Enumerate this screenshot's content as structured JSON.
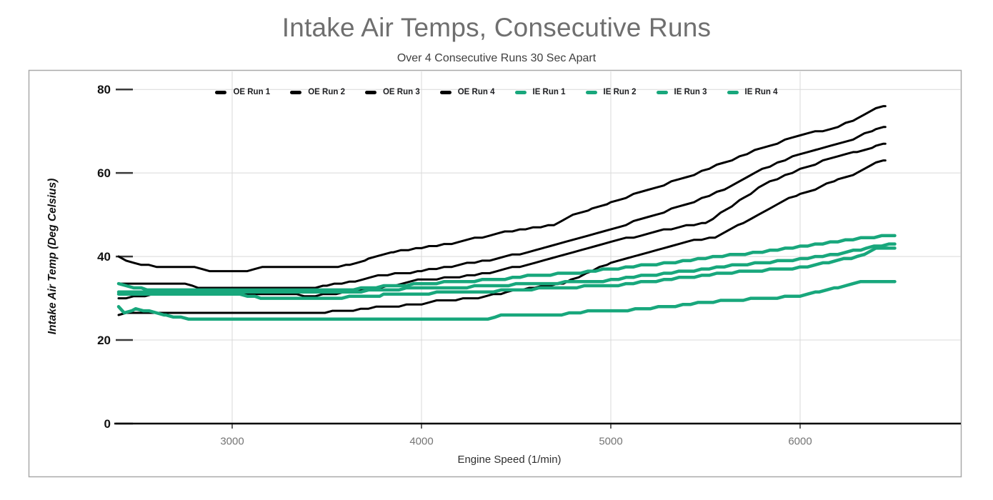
{
  "title": "Intake Air Temps, Consecutive Runs",
  "subtitle": "Over 4 Consecutive Runs 30 Sec Apart",
  "chart_data": {
    "type": "line",
    "title": "Intake Air Temps, Consecutive Runs",
    "subtitle": "Over 4 Consecutive Runs 30 Sec Apart",
    "xlabel": "Engine Speed (1/min)",
    "ylabel": "Intake Air Temp (Deg Celsius)",
    "xlim": [
      2400,
      6560
    ],
    "ylim": [
      0,
      80
    ],
    "x_ticks": [
      3000,
      4000,
      5000,
      6000
    ],
    "y_ticks": [
      0,
      20,
      40,
      60,
      80
    ],
    "grid": true,
    "legend_position": "top-center",
    "colors": {
      "oe": "#000000",
      "ie": "#18a77c"
    },
    "line_style": "stepped",
    "series": [
      {
        "name": "OE Run 1",
        "color": "oe",
        "points": [
          [
            2400,
            26
          ],
          [
            2450,
            26.5
          ],
          [
            3450,
            26.5
          ],
          [
            3600,
            27
          ],
          [
            3800,
            28
          ],
          [
            4000,
            28.5
          ],
          [
            4100,
            29.5
          ],
          [
            4300,
            30
          ],
          [
            4450,
            31.5
          ],
          [
            4600,
            32.5
          ],
          [
            4750,
            33.5
          ],
          [
            4900,
            36.5
          ],
          [
            5000,
            38.5
          ],
          [
            5200,
            41
          ],
          [
            5400,
            43.5
          ],
          [
            5550,
            44.5
          ],
          [
            5700,
            48
          ],
          [
            5800,
            50.5
          ],
          [
            5900,
            53
          ],
          [
            6000,
            55
          ],
          [
            6100,
            56.5
          ],
          [
            6200,
            58.5
          ],
          [
            6300,
            60
          ],
          [
            6400,
            62.5
          ],
          [
            6450,
            63
          ]
        ]
      },
      {
        "name": "OE Run 2",
        "color": "oe",
        "points": [
          [
            2400,
            30
          ],
          [
            2500,
            30.5
          ],
          [
            2620,
            31
          ],
          [
            3300,
            31
          ],
          [
            3400,
            30.5
          ],
          [
            3550,
            31
          ],
          [
            3700,
            32
          ],
          [
            3900,
            33.5
          ],
          [
            4000,
            34.5
          ],
          [
            4200,
            35
          ],
          [
            4400,
            36.5
          ],
          [
            4600,
            38.5
          ],
          [
            4800,
            41
          ],
          [
            5000,
            43.5
          ],
          [
            5200,
            45.5
          ],
          [
            5400,
            47.5
          ],
          [
            5500,
            48
          ],
          [
            5600,
            51
          ],
          [
            5700,
            54
          ],
          [
            5800,
            57
          ],
          [
            6000,
            61
          ],
          [
            6200,
            64
          ],
          [
            6300,
            65
          ],
          [
            6400,
            66.5
          ],
          [
            6450,
            67
          ]
        ]
      },
      {
        "name": "OE Run 3",
        "color": "oe",
        "points": [
          [
            2400,
            33.5
          ],
          [
            2750,
            33.5
          ],
          [
            2820,
            32.5
          ],
          [
            3400,
            32.5
          ],
          [
            3500,
            33
          ],
          [
            3650,
            34
          ],
          [
            3780,
            35.5
          ],
          [
            4000,
            36.5
          ],
          [
            4200,
            38
          ],
          [
            4400,
            39.5
          ],
          [
            4600,
            41.5
          ],
          [
            4800,
            44
          ],
          [
            5000,
            46.5
          ],
          [
            5200,
            49.5
          ],
          [
            5400,
            52.5
          ],
          [
            5600,
            56
          ],
          [
            5800,
            61
          ],
          [
            6000,
            64.5
          ],
          [
            6200,
            67
          ],
          [
            6300,
            68.5
          ],
          [
            6400,
            70.5
          ],
          [
            6450,
            71
          ]
        ]
      },
      {
        "name": "OE Run 4",
        "color": "oe",
        "points": [
          [
            2400,
            40
          ],
          [
            2440,
            39
          ],
          [
            2520,
            38
          ],
          [
            2620,
            37.5
          ],
          [
            2800,
            37.5
          ],
          [
            2880,
            36.5
          ],
          [
            3080,
            36.5
          ],
          [
            3180,
            37.5
          ],
          [
            3520,
            37.5
          ],
          [
            3620,
            38
          ],
          [
            3720,
            39.5
          ],
          [
            3850,
            41
          ],
          [
            4000,
            42
          ],
          [
            4200,
            43.5
          ],
          [
            4400,
            45.5
          ],
          [
            4550,
            46.5
          ],
          [
            4700,
            47.5
          ],
          [
            4800,
            50
          ],
          [
            4900,
            51.5
          ],
          [
            5000,
            53
          ],
          [
            5200,
            56
          ],
          [
            5400,
            59
          ],
          [
            5600,
            62.5
          ],
          [
            5800,
            66
          ],
          [
            6000,
            69
          ],
          [
            6200,
            71
          ],
          [
            6300,
            73
          ],
          [
            6400,
            75.5
          ],
          [
            6450,
            76
          ]
        ]
      },
      {
        "name": "IE Run 1",
        "color": "ie",
        "points": [
          [
            2400,
            28
          ],
          [
            2430,
            26.5
          ],
          [
            2490,
            27.3
          ],
          [
            2560,
            27
          ],
          [
            2650,
            25.8
          ],
          [
            2800,
            25
          ],
          [
            3000,
            24.8
          ],
          [
            4350,
            24.8
          ],
          [
            4420,
            25.8
          ],
          [
            4740,
            25.8
          ],
          [
            4800,
            26.7
          ],
          [
            5050,
            27
          ],
          [
            5300,
            28
          ],
          [
            5500,
            29
          ],
          [
            5800,
            30
          ],
          [
            6000,
            30.5
          ],
          [
            6100,
            31.5
          ],
          [
            6200,
            32.5
          ],
          [
            6320,
            33.8
          ],
          [
            6400,
            34
          ],
          [
            6500,
            34
          ]
        ]
      },
      {
        "name": "IE Run 2",
        "color": "ie",
        "points": [
          [
            2400,
            31
          ],
          [
            3000,
            31
          ],
          [
            3150,
            30.2
          ],
          [
            3500,
            30
          ],
          [
            3800,
            30.8
          ],
          [
            4000,
            31.2
          ],
          [
            4300,
            31.5
          ],
          [
            4500,
            32
          ],
          [
            4700,
            32.5
          ],
          [
            5000,
            33
          ],
          [
            5200,
            34
          ],
          [
            5400,
            35
          ],
          [
            5600,
            36
          ],
          [
            5800,
            36.7
          ],
          [
            6000,
            37.3
          ],
          [
            6150,
            38.5
          ],
          [
            6300,
            40
          ],
          [
            6400,
            41.8
          ],
          [
            6500,
            42
          ]
        ]
      },
      {
        "name": "IE Run 3",
        "color": "ie",
        "points": [
          [
            2400,
            31.7
          ],
          [
            3600,
            31.4
          ],
          [
            3800,
            32
          ],
          [
            4000,
            32.5
          ],
          [
            4300,
            32.8
          ],
          [
            4600,
            33.5
          ],
          [
            5000,
            34.3
          ],
          [
            5200,
            35.5
          ],
          [
            5400,
            36.5
          ],
          [
            5600,
            37.6
          ],
          [
            5800,
            38.5
          ],
          [
            6000,
            39.3
          ],
          [
            6200,
            40.5
          ],
          [
            6350,
            42
          ],
          [
            6500,
            43
          ]
        ]
      },
      {
        "name": "IE Run 4",
        "color": "ie",
        "points": [
          [
            2400,
            33.3
          ],
          [
            2550,
            32
          ],
          [
            3000,
            31.8
          ],
          [
            3600,
            32
          ],
          [
            3800,
            32.8
          ],
          [
            4000,
            33.5
          ],
          [
            4200,
            34
          ],
          [
            4400,
            34.5
          ],
          [
            4600,
            35.5
          ],
          [
            4800,
            36
          ],
          [
            5000,
            37
          ],
          [
            5300,
            38.5
          ],
          [
            5550,
            40
          ],
          [
            5800,
            41
          ],
          [
            6000,
            42.4
          ],
          [
            6200,
            43.5
          ],
          [
            6350,
            44.5
          ],
          [
            6500,
            45
          ]
        ]
      }
    ]
  }
}
